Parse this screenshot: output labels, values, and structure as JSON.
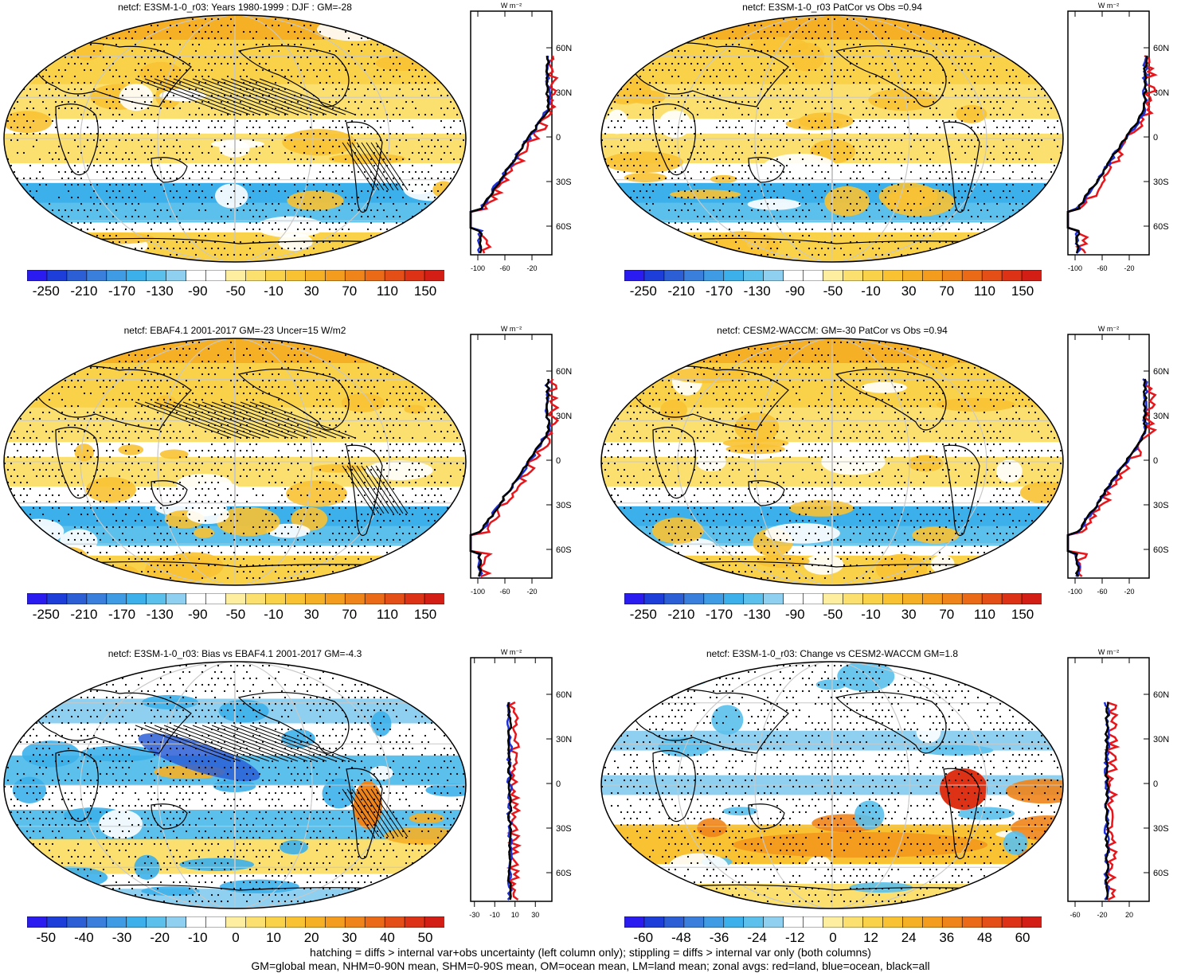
{
  "panels": [
    {
      "title": "netcf: E3SM-1-0_r03: Years 1980-1999 : DJF : GM=-28",
      "kind": "abs",
      "hatched": true,
      "colorbar": {
        "labels": [
          "-250",
          "-210",
          "-170",
          "-130",
          "-90",
          "-50",
          "-10",
          "30",
          "70",
          "110",
          "150"
        ]
      },
      "zonal": {
        "unit": "W m⁻²",
        "x_ticks": [
          "-100",
          "-60",
          "-20"
        ],
        "lat_ticks": [
          "60N",
          "30N",
          "0",
          "30S",
          "60S"
        ]
      }
    },
    {
      "title": "netcf: E3SM-1-0_r03 PatCor vs Obs =0.94",
      "kind": "abs",
      "hatched": false,
      "colorbar": {
        "labels": [
          "-250",
          "-210",
          "-170",
          "-130",
          "-90",
          "-50",
          "-10",
          "30",
          "70",
          "110",
          "150"
        ]
      },
      "zonal": {
        "unit": "W m⁻²",
        "x_ticks": [
          "-100",
          "-60",
          "-20"
        ],
        "lat_ticks": [
          "60N",
          "30N",
          "0",
          "30S",
          "60S"
        ]
      }
    },
    {
      "title": "netcf: EBAF4.1 2001-2017 GM=-23 Uncer=15 W/m2",
      "kind": "abs",
      "hatched": true,
      "colorbar": {
        "labels": [
          "-250",
          "-210",
          "-170",
          "-130",
          "-90",
          "-50",
          "-10",
          "30",
          "70",
          "110",
          "150"
        ]
      },
      "zonal": {
        "unit": "W m⁻²",
        "x_ticks": [
          "-100",
          "-60",
          "-20"
        ],
        "lat_ticks": [
          "60N",
          "30N",
          "0",
          "30S",
          "60S"
        ]
      }
    },
    {
      "title": "netcf: CESM2-WACCM: GM=-30 PatCor vs Obs =0.94",
      "kind": "abs",
      "hatched": false,
      "colorbar": {
        "labels": [
          "-250",
          "-210",
          "-170",
          "-130",
          "-90",
          "-50",
          "-10",
          "30",
          "70",
          "110",
          "150"
        ]
      },
      "zonal": {
        "unit": "W m⁻²",
        "x_ticks": [
          "-100",
          "-60",
          "-20"
        ],
        "lat_ticks": [
          "60N",
          "30N",
          "0",
          "30S",
          "60S"
        ]
      }
    },
    {
      "title": "netcf: E3SM-1-0_r03: Bias vs EBAF4.1 2001-2017 GM=-4.3",
      "kind": "bias",
      "hatched": true,
      "colorbar": {
        "labels": [
          "-50",
          "-40",
          "-30",
          "-20",
          "-10",
          "0",
          "10",
          "20",
          "30",
          "40",
          "50"
        ]
      },
      "zonal": {
        "unit": "W m⁻²",
        "x_ticks": [
          "-30",
          "-10",
          "10",
          "30"
        ],
        "lat_ticks": [
          "60N",
          "30N",
          "0",
          "30S",
          "60S"
        ]
      }
    },
    {
      "title": "netcf: E3SM-1-0_r03: Change vs CESM2-WACCM GM=1.8",
      "kind": "change",
      "hatched": false,
      "colorbar": {
        "labels": [
          "-60",
          "-48",
          "-36",
          "-24",
          "-12",
          "0",
          "12",
          "24",
          "36",
          "48",
          "60"
        ]
      },
      "zonal": {
        "unit": "W m⁻²",
        "x_ticks": [
          "-60",
          "-20",
          "20"
        ],
        "lat_ticks": [
          "60N",
          "30N",
          "0",
          "30S",
          "60S"
        ]
      }
    }
  ],
  "footnote": {
    "line1": "hatching = diffs > internal var+obs uncertainty (left column only); stippling = diffs > internal var only (both columns)",
    "line2": "GM=global mean, NHM=0-90N mean, SHM=0-90S mean, OM=ocean mean, LM=land mean; zonal avgs: red=land, blue=ocean, black=all"
  },
  "colors": {
    "land_line": "#e8151b",
    "ocean_line": "#1d2fd9",
    "all_line": "#000000",
    "palette": [
      "#2a1cf0",
      "#1d3ed8",
      "#2c5fd6",
      "#3a7fdc",
      "#3f9be4",
      "#3cb0ea",
      "#5bc0ec",
      "#8fd0f0",
      "#ffffff",
      "#ffffff",
      "#fdeea0",
      "#fbe070",
      "#f9d24a",
      "#f8c233",
      "#f6b026",
      "#f39c1e",
      "#ef841a",
      "#ea6a18",
      "#e44e17",
      "#dd3215",
      "#d21e14"
    ]
  }
}
